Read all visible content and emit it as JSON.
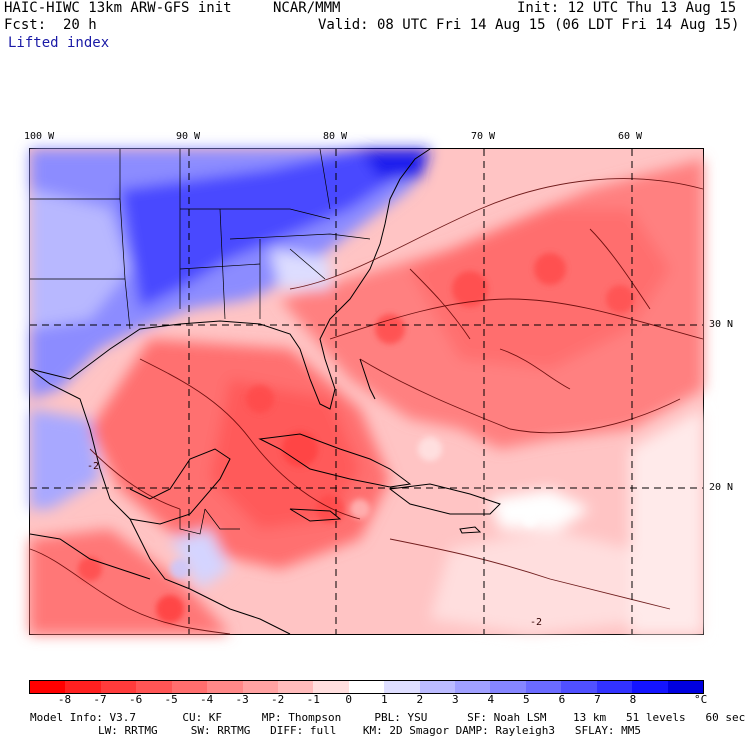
{
  "header": {
    "model": "HAIC-HIWC 13km ARW-GFS init",
    "org": "NCAR/MMM",
    "init": "Init: 12 UTC Thu 13 Aug 15",
    "fcst_label": "Fcst:",
    "fcst_value": "20 h",
    "valid": "Valid: 08 UTC Fri 14 Aug 15 (06 LDT Fri 14 Aug 15)",
    "field": "Lifted index"
  },
  "map": {
    "lon_labels": [
      "100 W",
      "90 W",
      "80 W",
      "70 W",
      "60 W"
    ],
    "lat_labels": [
      "30 N",
      "20 N"
    ],
    "contour_label": "-2"
  },
  "colorbar": {
    "ticks": [
      "-8",
      "-7",
      "-6",
      "-5",
      "-4",
      "-3",
      "-2",
      "-1",
      "0",
      "1",
      "2",
      "3",
      "4",
      "5",
      "6",
      "7",
      "8"
    ],
    "unit": "°C",
    "colors": [
      "#ff0000",
      "#ff2020",
      "#ff3b3b",
      "#ff5555",
      "#ff6e6e",
      "#ff8888",
      "#ffa2a2",
      "#ffbbbb",
      "#ffdede",
      "#ffffff",
      "#dedeff",
      "#bbbbff",
      "#a0a0ff",
      "#8686ff",
      "#6b6bff",
      "#5050ff",
      "#3232ff",
      "#1414ff",
      "#0000e0"
    ]
  },
  "footer": {
    "line1": "Model Info: V3.7       CU: KF      MP: Thompson     PBL: YSU      SF: Noah LSM    13 km   51 levels   60 sec",
    "line2": "LW: RRTMG     SW: RRTMG   DIFF: full    KM: 2D Smagor DAMP: Rayleigh3   SFLAY: MM5"
  }
}
